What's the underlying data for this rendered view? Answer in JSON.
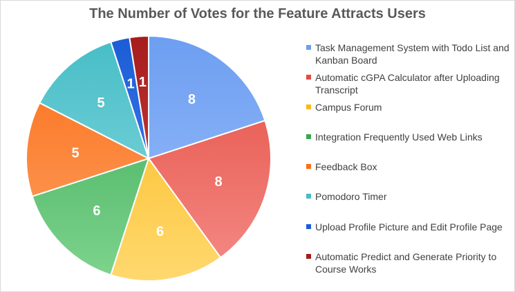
{
  "chart_data": {
    "type": "pie",
    "title": "The Number of Votes for the Feature Attracts Users",
    "legend_position": "right",
    "categories": [
      "Task Management System with Todo List and Kanban Board",
      "Automatic cGPA Calculator after Uploading Transcript",
      "Campus Forum",
      "Integration Frequently Used  Web Links",
      "Feedback Box",
      "Pomodoro Timer",
      "Upload Profile Picture and Edit Profile Page",
      "Automatic Predict and Generate Priority to Course Works"
    ],
    "values": [
      8,
      8,
      6,
      6,
      5,
      5,
      1,
      1
    ],
    "data_labels": [
      "8",
      "8",
      "6",
      "6",
      "5",
      "5",
      "1",
      "1"
    ],
    "colors": [
      [
        "#6d9ef1",
        "#9dc0fb"
      ],
      [
        "#e44c42",
        "#f48c86"
      ],
      [
        "#f9b919",
        "#ffd86e"
      ],
      [
        "#36a853",
        "#7fd48e"
      ],
      [
        "#fb6d16",
        "#fda265"
      ],
      [
        "#46bdc6",
        "#8fdbe2"
      ],
      [
        "#1b5dd6",
        "#4f87ee"
      ],
      [
        "#a61c1c",
        "#d74a4a"
      ]
    ]
  }
}
